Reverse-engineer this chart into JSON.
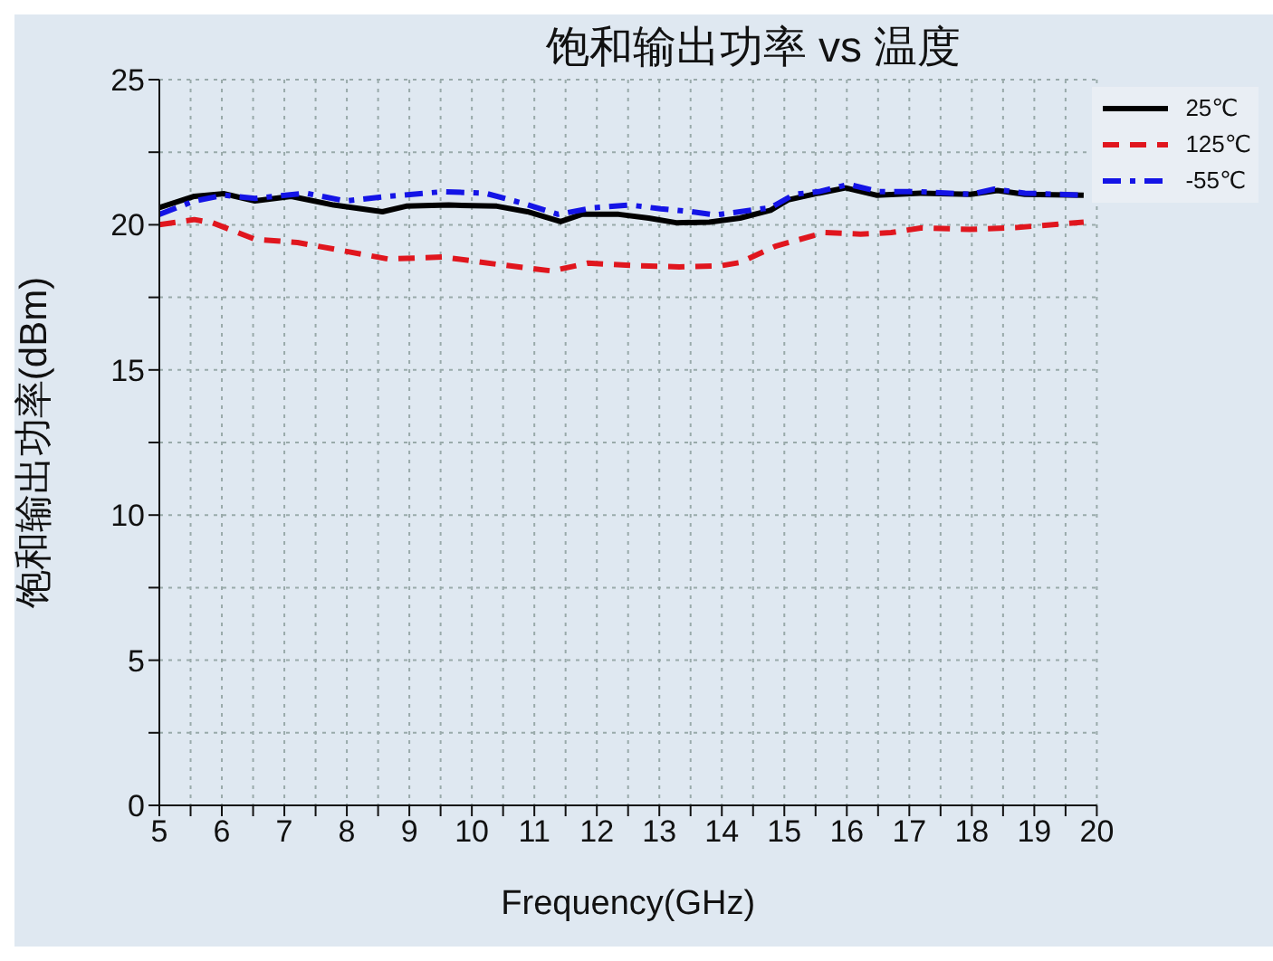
{
  "chart_data": {
    "type": "line",
    "title": "饱和输出功率 vs 温度",
    "xlabel": "Frequency(GHz)",
    "ylabel": "饱和输出功率(dBm)",
    "xlim": [
      5,
      20
    ],
    "xticks": [
      5,
      {
        "value": 5.5,
        "label": null
      },
      6,
      {
        "value": 6.5,
        "label": null
      },
      7,
      {
        "value": 7.5,
        "label": null
      },
      8,
      {
        "value": 8.5,
        "label": null
      },
      9,
      {
        "value": 9.5,
        "label": null
      },
      10,
      {
        "value": 10.5,
        "label": null
      },
      11,
      {
        "value": 11.5,
        "label": null
      },
      12,
      {
        "value": 12.5,
        "label": null
      },
      13,
      {
        "value": 13.5,
        "label": null
      },
      14,
      {
        "value": 14.5,
        "label": null
      },
      15,
      {
        "value": 15.5,
        "label": null
      },
      16,
      {
        "value": 16.5,
        "label": null
      },
      17,
      {
        "value": 17.5,
        "label": null
      },
      18,
      {
        "value": 18.5,
        "label": null
      },
      19,
      {
        "value": 19.5,
        "label": null
      },
      20
    ],
    "ylim": [
      0,
      25
    ],
    "yticks": [
      0,
      {
        "value": 2.5,
        "label": null
      },
      5,
      {
        "value": 7.5,
        "label": null
      },
      10,
      {
        "value": 12.5,
        "label": null
      },
      15,
      {
        "value": 17.5,
        "label": null
      },
      20,
      {
        "value": 22.5,
        "label": null
      },
      25
    ],
    "grid": true,
    "legend": "top right",
    "marker": "none",
    "series": [
      {
        "name": "25℃",
        "color": "#000000",
        "line_style": "solid",
        "x": [
          5.0,
          5.56,
          6.04,
          6.53,
          7.11,
          7.79,
          8.57,
          8.95,
          9.63,
          10.4,
          10.89,
          11.42,
          11.76,
          12.35,
          12.83,
          13.27,
          13.8,
          14.29,
          14.78,
          15.06,
          15.55,
          15.98,
          16.47,
          17.18,
          17.98,
          18.41,
          18.85,
          19.79
        ],
        "values": [
          20.59,
          20.98,
          21.07,
          20.82,
          20.98,
          20.68,
          20.45,
          20.64,
          20.68,
          20.64,
          20.45,
          20.11,
          20.36,
          20.36,
          20.23,
          20.07,
          20.09,
          20.23,
          20.5,
          20.86,
          21.09,
          21.27,
          21.02,
          21.09,
          21.05,
          21.18,
          21.05,
          21.02
        ]
      },
      {
        "name": "125℃",
        "color": "#e0161e",
        "line_style": "dashed",
        "x": [
          5.0,
          5.56,
          5.85,
          6.53,
          7.21,
          7.98,
          8.66,
          9.54,
          10.4,
          11.28,
          11.86,
          12.64,
          13.32,
          13.99,
          14.29,
          14.87,
          15.64,
          16.22,
          16.71,
          17.18,
          17.98,
          18.74,
          19.79
        ],
        "values": [
          20.0,
          20.18,
          20.07,
          19.5,
          19.39,
          19.09,
          18.82,
          18.89,
          18.64,
          18.41,
          18.68,
          18.59,
          18.55,
          18.59,
          18.7,
          19.27,
          19.73,
          19.68,
          19.73,
          19.89,
          19.84,
          19.91,
          20.09
        ]
      },
      {
        "name": "-55℃",
        "color": "#1414e6",
        "line_style": "dashdot",
        "x": [
          5.0,
          5.56,
          6.04,
          6.53,
          7.34,
          7.98,
          8.66,
          9.54,
          10.21,
          10.8,
          11.38,
          11.96,
          12.54,
          13.02,
          13.51,
          13.9,
          14.29,
          14.78,
          15.16,
          15.55,
          16.03,
          16.52,
          17.18,
          17.98,
          18.36,
          18.85,
          19.79
        ],
        "values": [
          20.36,
          20.82,
          21.02,
          20.91,
          21.09,
          20.82,
          20.98,
          21.14,
          21.09,
          20.75,
          20.36,
          20.59,
          20.68,
          20.55,
          20.45,
          20.34,
          20.45,
          20.59,
          21.05,
          21.14,
          21.39,
          21.14,
          21.14,
          21.05,
          21.23,
          21.09,
          21.02
        ]
      }
    ]
  }
}
